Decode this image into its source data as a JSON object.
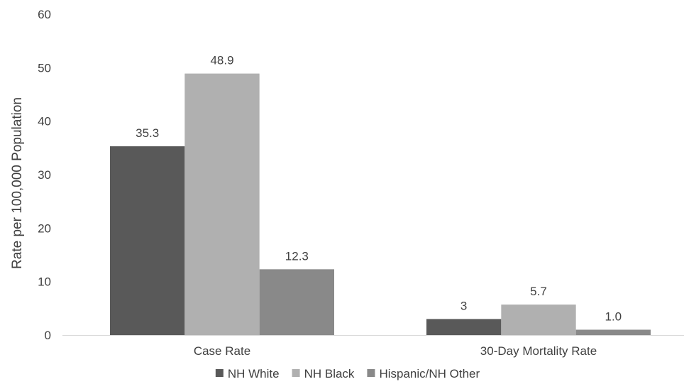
{
  "chart_data": {
    "type": "bar",
    "categories": [
      "Case Rate",
      "30-Day Mortality Rate"
    ],
    "series": [
      {
        "name": "NH White",
        "values": [
          35.3,
          3
        ],
        "labels": [
          "35.3",
          "3"
        ],
        "color": "#595959"
      },
      {
        "name": "NH Black",
        "values": [
          48.9,
          5.7
        ],
        "labels": [
          "48.9",
          "5.7"
        ],
        "color": "#b0b0b0"
      },
      {
        "name": "Hispanic/NH Other",
        "values": [
          12.3,
          1.0
        ],
        "labels": [
          "12.3",
          "1.0"
        ],
        "color": "#898989"
      }
    ],
    "title": "",
    "xlabel": "",
    "ylabel": "Rate per 100,000 Population",
    "ylim": [
      0,
      60
    ],
    "yticks": [
      0,
      10,
      20,
      30,
      40,
      50,
      60
    ],
    "grid": false,
    "legend_position": "bottom-center"
  }
}
